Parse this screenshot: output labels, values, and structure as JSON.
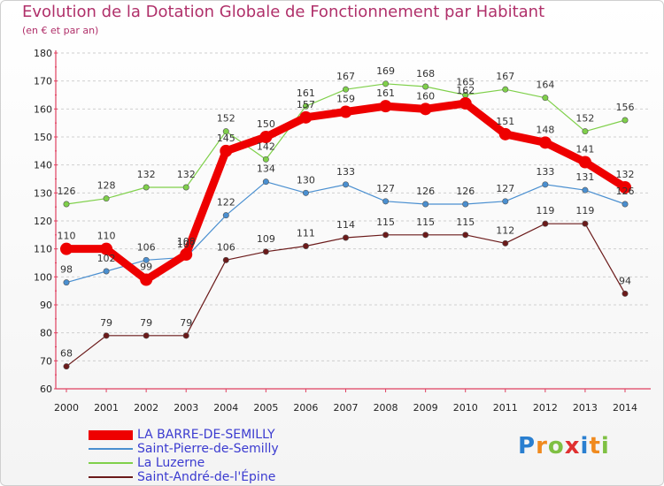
{
  "header": {
    "title": "Evolution de la Dotation Globale de Fonctionnement par Habitant",
    "subtitle": "(en € et par an)"
  },
  "chart_data": {
    "type": "line",
    "title": "Evolution de la Dotation Globale de Fonctionnement par Habitant",
    "subtitle": "(en € et par an)",
    "xlabel": "",
    "ylabel": "",
    "x": [
      "2000",
      "2001",
      "2002",
      "2003",
      "2004",
      "2005",
      "2006",
      "2007",
      "2008",
      "2009",
      "2010",
      "2011",
      "2012",
      "2013",
      "2014"
    ],
    "ylim": [
      60,
      180
    ],
    "yticks": [
      60,
      70,
      80,
      90,
      100,
      110,
      120,
      130,
      140,
      150,
      160,
      170,
      180
    ],
    "grid": "horizontal dashed",
    "legend": "bottom-left",
    "series": [
      {
        "name": "La Luzerne",
        "color": "#7fd04a",
        "values": [
          126,
          128,
          132,
          132,
          152,
          142,
          161,
          167,
          169,
          168,
          165,
          167,
          164,
          152,
          156
        ]
      },
      {
        "name": "Saint-Pierre-de-Semilly",
        "color": "#4a8fd0",
        "values": [
          98,
          102,
          106,
          107,
          122,
          134,
          130,
          133,
          127,
          126,
          126,
          127,
          133,
          131,
          126
        ]
      },
      {
        "name": "Saint-André-de-l'Épine",
        "color": "#6b1a1a",
        "values": [
          68,
          79,
          79,
          79,
          106,
          109,
          111,
          114,
          115,
          115,
          115,
          112,
          119,
          119,
          94
        ]
      },
      {
        "name": "LA BARRE-DE-SEMILLY",
        "color": "#ee0000",
        "values": [
          110,
          110,
          99,
          108,
          145,
          150,
          157,
          159,
          161,
          160,
          162,
          151,
          148,
          141,
          132
        ]
      }
    ]
  },
  "legend": {
    "items": [
      {
        "label": "LA BARRE-DE-SEMILLY",
        "color": "#ee0000",
        "text_color": "#3b3bd0"
      },
      {
        "label": "Saint-Pierre-de-Semilly",
        "color": "#4a8fd0",
        "text_color": "#3b3bd0"
      },
      {
        "label": "La Luzerne",
        "color": "#7fd04a",
        "text_color": "#3b3bd0"
      },
      {
        "label": "Saint-André-de-l'Épine",
        "color": "#6b1a1a",
        "text_color": "#3b3bd0"
      }
    ]
  },
  "logo": {
    "letters": [
      "P",
      "r",
      "o",
      "x",
      "i",
      "t",
      "i"
    ],
    "colors": [
      "#2a7fd0",
      "#f08a1e",
      "#7fc043",
      "#e03030",
      "#2a7fd0",
      "#f08a1e",
      "#7fc043"
    ]
  }
}
